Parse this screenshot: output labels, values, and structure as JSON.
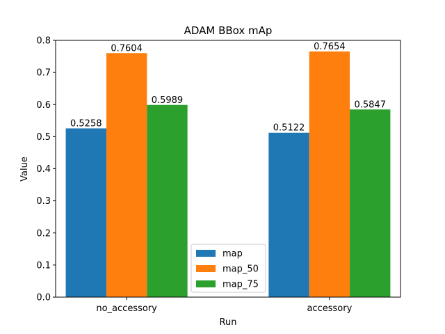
{
  "chart_data": {
    "type": "bar",
    "title": "ADAM BBox mAp",
    "xlabel": "Run",
    "ylabel": "Value",
    "categories": [
      "no_accessory",
      "accessory"
    ],
    "series": [
      {
        "name": "map",
        "values": [
          0.5258,
          0.5122
        ],
        "labels": [
          "0.5258",
          "0.5122"
        ],
        "color": "#1f77b4"
      },
      {
        "name": "map_50",
        "values": [
          0.7604,
          0.7654
        ],
        "labels": [
          "0.7604",
          "0.7654"
        ],
        "color": "#ff7f0e"
      },
      {
        "name": "map_75",
        "values": [
          0.5989,
          0.5847
        ],
        "labels": [
          "0.5989",
          "0.5847"
        ],
        "color": "#2ca02c"
      }
    ],
    "ylim": [
      0,
      0.8
    ],
    "yticks": [
      {
        "value": 0.0,
        "label": "0.0"
      },
      {
        "value": 0.1,
        "label": "0.1"
      },
      {
        "value": 0.2,
        "label": "0.2"
      },
      {
        "value": 0.3,
        "label": "0.3"
      },
      {
        "value": 0.4,
        "label": "0.4"
      },
      {
        "value": 0.5,
        "label": "0.5"
      },
      {
        "value": 0.6,
        "label": "0.6"
      },
      {
        "value": 0.7,
        "label": "0.7"
      },
      {
        "value": 0.8,
        "label": "0.8"
      }
    ],
    "grid": false,
    "legend_position": "bottom-center"
  }
}
